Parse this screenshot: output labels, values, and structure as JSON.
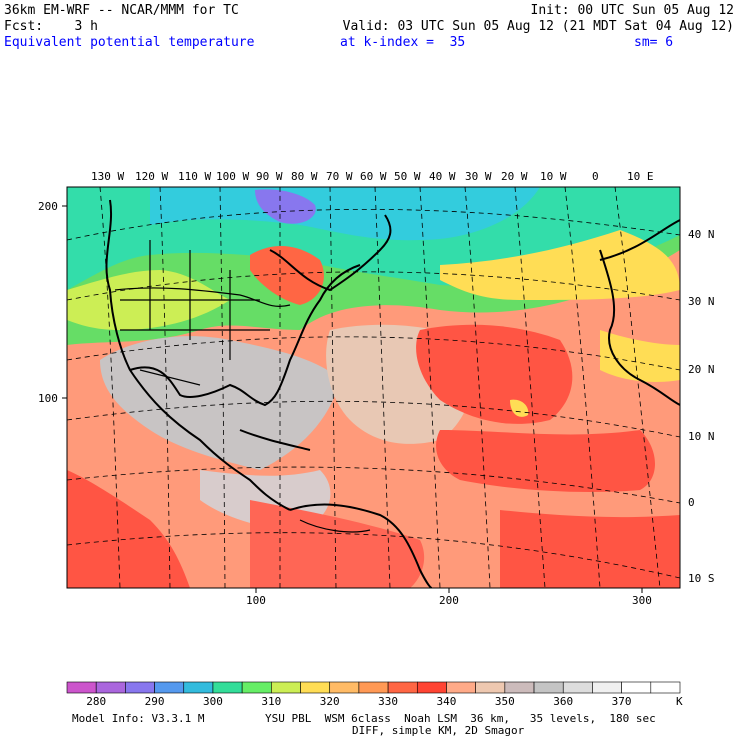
{
  "header": {
    "model_line": "36km EM-WRF -- NCAR/MMM for TC",
    "init_line": "Init: 00 UTC Sun 05 Aug 12",
    "fcst_line": "Fcst:    3 h",
    "valid_line": "Valid: 03 UTC Sun 05 Aug 12 (21 MDT Sat 04 Aug 12)",
    "field_name": "Equivalent potential temperature",
    "level": "at k-index =  35",
    "smoothing": "sm= 6"
  },
  "map": {
    "top_lon_labels": [
      "130 W",
      "120 W",
      "110 W",
      "100 W",
      "90 W",
      "80 W",
      "70 W",
      "60 W",
      "50 W",
      "40 W",
      "30 W",
      "20 W",
      "10 W",
      "0",
      "10 E"
    ],
    "right_lat_labels": [
      "40 N",
      "30 N",
      "20 N",
      "10 N",
      "0",
      "10 S"
    ],
    "left_grid_labels": [
      "200",
      "100"
    ],
    "bottom_grid_labels": [
      "100",
      "200",
      "300"
    ]
  },
  "colorbar": {
    "colors": [
      "#cc55cc",
      "#aa66dd",
      "#8877ee",
      "#5599ee",
      "#33bbdd",
      "#33dd99",
      "#66ee66",
      "#ccee55",
      "#ffdd55",
      "#ffbb66",
      "#ff9955",
      "#ff6644",
      "#ff4433",
      "#ffaa88",
      "#eec8b0",
      "#ccbbbb",
      "#c4c4c4",
      "#dddddd",
      "#f0f0f0",
      "#ffffff",
      "#ffffff"
    ],
    "labels": [
      "280",
      "290",
      "300",
      "310",
      "320",
      "330",
      "340",
      "350",
      "360",
      "370"
    ],
    "unit": "K"
  },
  "footer": {
    "line1_left": "Model Info: V3.3.1 M",
    "line1_right": "YSU PBL  WSM 6class  Noah LSM  36 km,   35 levels,  180 sec",
    "line2": "DIFF, simple KM, 2D Smagor"
  }
}
